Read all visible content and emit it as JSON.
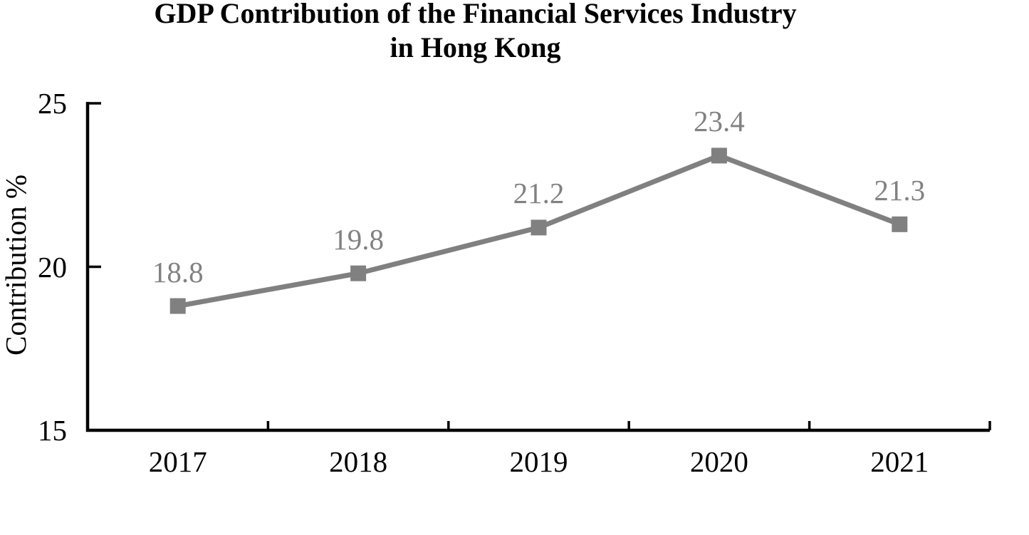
{
  "chart": {
    "title_line1": "GDP Contribution of the Financial Services Industry",
    "title_line2": "in Hong Kong",
    "ylabel": "Contribution %"
  },
  "chart_data": {
    "type": "line",
    "title": "GDP Contribution of the Financial Services Industry in Hong Kong",
    "xlabel": "",
    "ylabel": "Contribution %",
    "categories": [
      "2017",
      "2018",
      "2019",
      "2020",
      "2021"
    ],
    "values": [
      18.8,
      19.8,
      21.2,
      23.4,
      21.3
    ],
    "data_labels": [
      "18.8",
      "19.8",
      "21.2",
      "23.4",
      "21.3"
    ],
    "ylim": [
      15,
      25
    ],
    "yticks": [
      15,
      20,
      25
    ],
    "grid": false,
    "legend": "none",
    "marker": "square",
    "colors": {
      "series": "#808080",
      "data_label": "#818181",
      "axis": "#000000",
      "title": "#000000",
      "background": "#FFFFFF"
    }
  }
}
